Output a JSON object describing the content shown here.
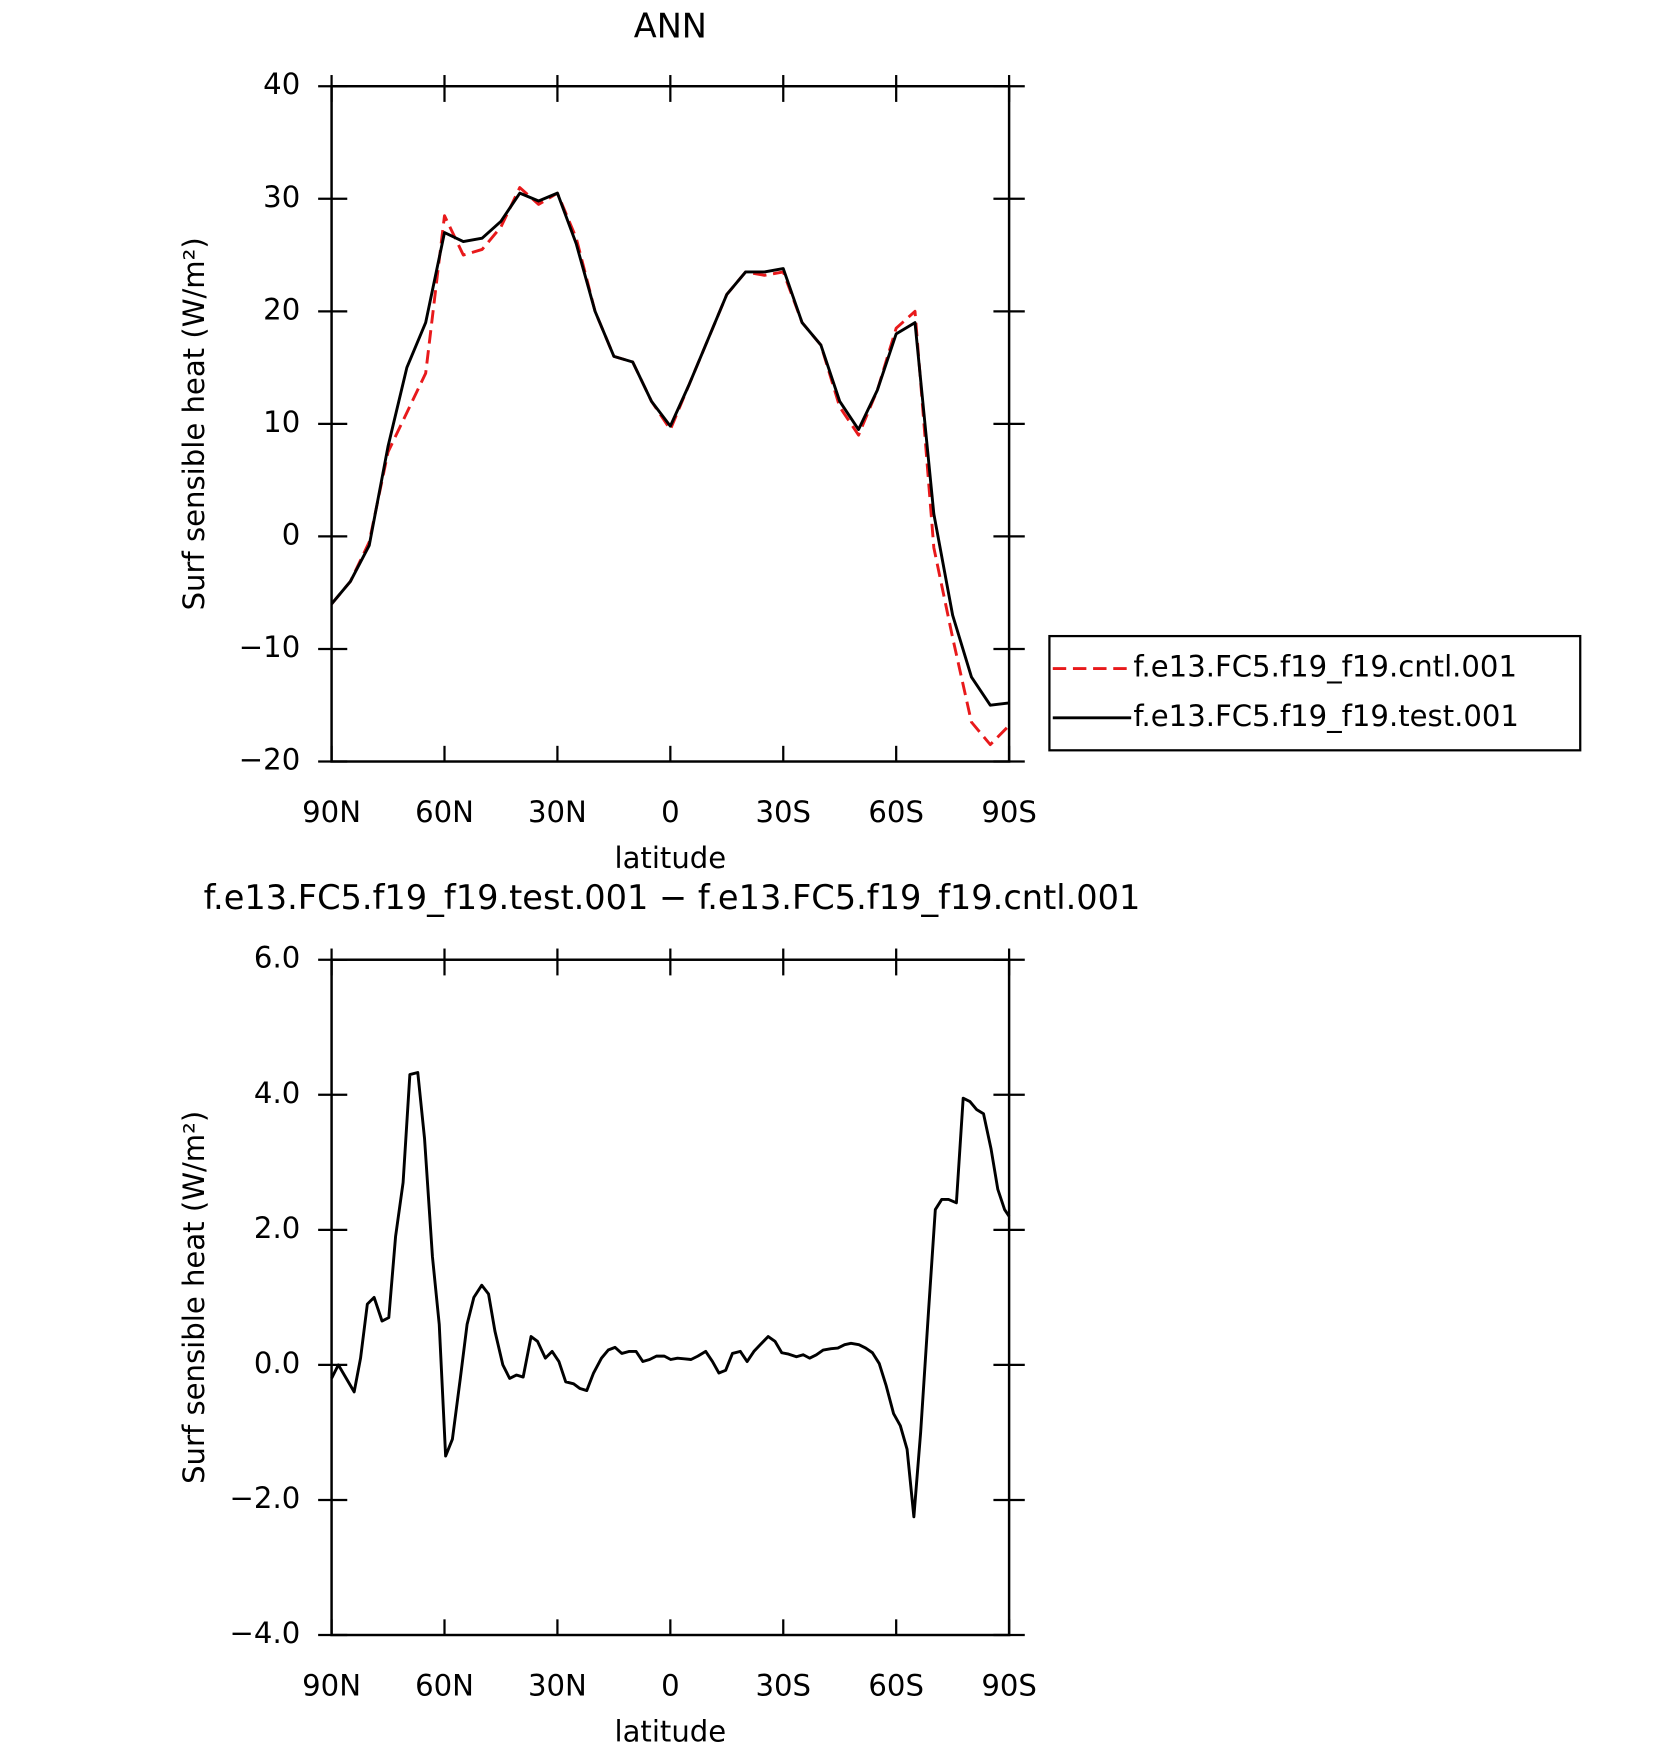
{
  "chart_data": [
    {
      "type": "line",
      "title": "ANN",
      "xlabel": "latitude",
      "ylabel": "Surf sensible heat (W/m²)",
      "x": [
        90,
        85,
        80,
        75,
        70,
        65,
        60,
        55,
        50,
        45,
        40,
        35,
        30,
        25,
        20,
        15,
        10,
        5,
        0,
        -5,
        -10,
        -15,
        -20,
        -25,
        -30,
        -35,
        -40,
        -45,
        -50,
        -55,
        -60,
        -65,
        -70,
        -75,
        -80,
        -85,
        -90
      ],
      "series": [
        {
          "name": "f.e13.FC5.f19_f19.cntl.001",
          "color": "#e8191b",
          "dash": true,
          "values": [
            -6,
            -4,
            -0.5,
            7.5,
            11,
            14.5,
            28.5,
            25,
            25.5,
            27.5,
            31,
            29.5,
            30.5,
            26.5,
            20,
            16,
            15.5,
            12,
            9.5,
            13.5,
            17.5,
            21.5,
            23.5,
            23.2,
            23.5,
            19,
            17,
            11.5,
            9,
            13,
            18.5,
            20,
            -1,
            -9,
            -16.5,
            -18.5,
            -16.8
          ]
        },
        {
          "name": "f.e13.FC5.f19_f19.test.001",
          "color": "#000000",
          "dash": false,
          "values": [
            -6,
            -4,
            -0.8,
            8,
            15,
            19,
            27,
            26.2,
            26.5,
            28,
            30.5,
            29.8,
            30.5,
            26,
            20,
            16,
            15.5,
            12,
            9.8,
            13.5,
            17.5,
            21.5,
            23.5,
            23.5,
            23.8,
            19,
            17,
            12,
            9.5,
            13,
            18,
            19,
            2,
            -7,
            -12.5,
            -15,
            -14.8
          ]
        }
      ],
      "xlim": [
        90,
        -90
      ],
      "xticks": [
        {
          "value": 90,
          "label": "90N"
        },
        {
          "value": 60,
          "label": "60N"
        },
        {
          "value": 30,
          "label": "30N"
        },
        0,
        {
          "value": -30,
          "label": "30S"
        },
        {
          "value": -60,
          "label": "60S"
        },
        {
          "value": -90,
          "label": "90S"
        }
      ],
      "ylim": [
        -20,
        40
      ],
      "yticks": [
        {
          "value": -20,
          "label": "−20"
        },
        {
          "value": -10,
          "label": "−10"
        },
        0,
        10,
        20,
        30,
        40
      ],
      "legend": "outside right"
    },
    {
      "type": "line",
      "title": "f.e13.FC5.f19_f19.test.001 − f.e13.FC5.f19_f19.cntl.001",
      "xlabel": "latitude",
      "ylabel": "Surf sensible heat (W/m²)",
      "x": [
        90,
        88.2,
        84.0,
        82.3,
        80.5,
        78.7,
        76.6,
        74.8,
        73.0,
        71.0,
        69.2,
        67.1,
        65.3,
        63.2,
        61.4,
        59.7,
        57.9,
        55.8,
        54.0,
        52.2,
        50.1,
        48.3,
        46.6,
        44.5,
        42.7,
        40.9,
        39.1,
        37.0,
        35.3,
        33.2,
        31.4,
        29.6,
        27.8,
        25.7,
        24.0,
        22.2,
        20.4,
        18.3,
        16.5,
        14.7,
        12.9,
        10.9,
        9.1,
        7.3,
        5.5,
        3.7,
        1.6,
        -0.1,
        -1.9,
        -3.7,
        -5.5,
        -7.3,
        -9.4,
        -11.2,
        -12.9,
        -14.7,
        -16.5,
        -18.6,
        -20.4,
        -22.2,
        -23.9,
        -26.0,
        -27.8,
        -29.6,
        -31.4,
        -33.5,
        -35.3,
        -37.0,
        -38.8,
        -40.6,
        -42.7,
        -44.5,
        -46.3,
        -48.0,
        -50.1,
        -51.9,
        -53.7,
        -55.5,
        -57.3,
        -59.3,
        -61.1,
        -62.9,
        -64.7,
        -66.5,
        -68.6,
        -70.4,
        -72.1,
        -73.9,
        -76.0,
        -77.8,
        -79.6,
        -81.4,
        -83.2,
        -85.2,
        -87.0,
        -88.8,
        -90
      ],
      "series": [
        {
          "color": "#000000",
          "dash": false,
          "values": [
            -0.2,
            0.0,
            -0.4,
            0.1,
            0.9,
            1.0,
            0.65,
            0.7,
            1.9,
            2.7,
            4.3,
            4.33,
            3.35,
            1.6,
            0.6,
            -1.35,
            -1.1,
            -0.2,
            0.6,
            1.0,
            1.18,
            1.05,
            0.5,
            0.0,
            -0.2,
            -0.15,
            -0.18,
            0.42,
            0.35,
            0.1,
            0.2,
            0.05,
            -0.25,
            -0.28,
            -0.35,
            -0.38,
            -0.12,
            0.1,
            0.22,
            0.26,
            0.17,
            0.2,
            0.2,
            0.05,
            0.08,
            0.13,
            0.13,
            0.08,
            0.1,
            0.09,
            0.08,
            0.13,
            0.2,
            0.05,
            -0.12,
            -0.08,
            0.17,
            0.2,
            0.05,
            0.2,
            0.3,
            0.42,
            0.35,
            0.18,
            0.16,
            0.12,
            0.15,
            0.1,
            0.15,
            0.22,
            0.24,
            0.25,
            0.3,
            0.32,
            0.3,
            0.25,
            0.18,
            0.02,
            -0.3,
            -0.72,
            -0.9,
            -1.25,
            -2.25,
            -1.0,
            0.8,
            2.3,
            2.45,
            2.45,
            2.4,
            3.95,
            3.9,
            3.78,
            3.72,
            3.2,
            2.6,
            2.3,
            2.2
          ]
        }
      ],
      "xlim": [
        90,
        -90
      ],
      "xticks": [
        {
          "value": 90,
          "label": "90N"
        },
        {
          "value": 60,
          "label": "60N"
        },
        {
          "value": 30,
          "label": "30N"
        },
        0,
        {
          "value": -30,
          "label": "30S"
        },
        {
          "value": -60,
          "label": "60S"
        },
        {
          "value": -90,
          "label": "90S"
        }
      ],
      "ylim": [
        -4,
        6
      ],
      "yticks": [
        {
          "value": -4,
          "label": "−4.0"
        },
        {
          "value": -2,
          "label": "−2.0"
        },
        {
          "value": 0,
          "label": "0.0"
        },
        {
          "value": 2,
          "label": "2.0"
        },
        {
          "value": 4,
          "label": "4.0"
        },
        {
          "value": 6,
          "label": "6.0"
        }
      ]
    }
  ]
}
